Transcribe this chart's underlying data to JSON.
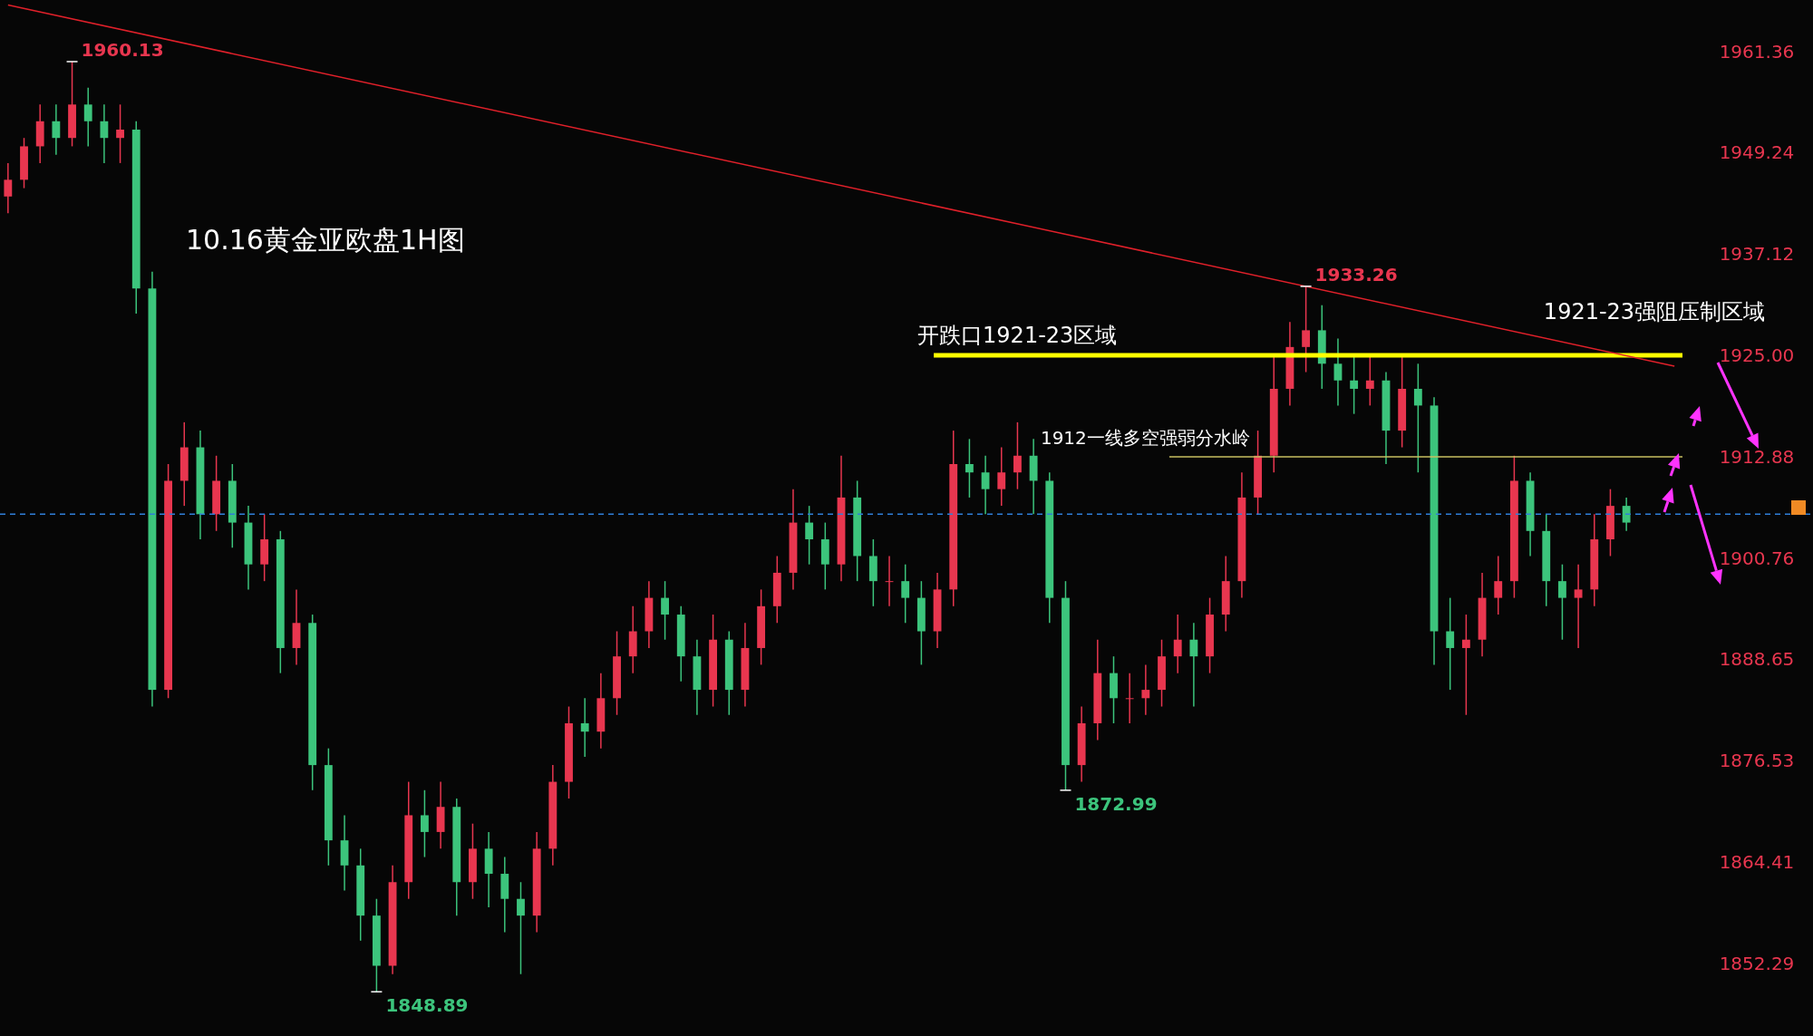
{
  "chart_data": {
    "type": "candlestick",
    "title": "10.16黄金亚欧盘1H图",
    "categories": [
      null,
      null,
      null,
      null,
      null,
      null,
      null,
      null,
      null,
      null,
      null,
      null,
      null,
      null,
      null,
      null,
      null,
      null,
      null,
      null,
      null,
      null,
      null,
      null,
      null,
      null,
      null,
      null,
      null,
      null,
      null,
      null,
      null,
      null,
      null,
      null,
      null,
      null,
      null,
      null,
      null,
      null,
      null,
      null,
      null,
      null,
      null,
      null,
      null,
      null,
      null,
      null,
      null,
      null,
      null,
      null,
      null,
      null,
      null,
      null,
      null,
      null,
      null,
      null,
      null,
      null,
      null,
      null,
      null,
      null,
      null,
      null,
      null,
      null,
      null,
      null,
      null,
      null,
      null,
      null,
      null,
      null,
      null,
      null,
      null,
      null,
      null,
      null,
      null,
      null,
      null,
      null,
      null,
      null,
      null,
      null,
      null,
      null,
      null,
      null,
      null,
      null,
      null,
      null,
      null
    ],
    "ohlc": [
      [
        1944,
        1948,
        1942,
        1946
      ],
      [
        1946,
        1951,
        1945,
        1950
      ],
      [
        1950,
        1955,
        1948,
        1953
      ],
      [
        1953,
        1955,
        1949,
        1951
      ],
      [
        1951,
        1960.13,
        1950,
        1955
      ],
      [
        1955,
        1957,
        1950,
        1953
      ],
      [
        1953,
        1955,
        1948,
        1951
      ],
      [
        1951,
        1955,
        1948,
        1952
      ],
      [
        1952,
        1953,
        1930,
        1933
      ],
      [
        1933,
        1935,
        1883,
        1885
      ],
      [
        1885,
        1912,
        1884,
        1910
      ],
      [
        1910,
        1917,
        1907,
        1914
      ],
      [
        1914,
        1916,
        1903,
        1906
      ],
      [
        1906,
        1913,
        1904,
        1910
      ],
      [
        1910,
        1912,
        1902,
        1905
      ],
      [
        1905,
        1907,
        1897,
        1900
      ],
      [
        1900,
        1906,
        1898,
        1903
      ],
      [
        1903,
        1904,
        1887,
        1890
      ],
      [
        1890,
        1897,
        1888,
        1893
      ],
      [
        1893,
        1894,
        1873,
        1876
      ],
      [
        1876,
        1878,
        1864,
        1867
      ],
      [
        1867,
        1870,
        1861,
        1864
      ],
      [
        1864,
        1866,
        1855,
        1858
      ],
      [
        1858,
        1860,
        1848.89,
        1852
      ],
      [
        1852,
        1864,
        1851,
        1862
      ],
      [
        1862,
        1874,
        1860,
        1870
      ],
      [
        1870,
        1873,
        1865,
        1868
      ],
      [
        1868,
        1874,
        1866,
        1871
      ],
      [
        1871,
        1872,
        1858,
        1862
      ],
      [
        1862,
        1869,
        1860,
        1866
      ],
      [
        1866,
        1868,
        1859,
        1863
      ],
      [
        1863,
        1865,
        1856,
        1860
      ],
      [
        1860,
        1862,
        1851,
        1858
      ],
      [
        1858,
        1868,
        1856,
        1866
      ],
      [
        1866,
        1876,
        1864,
        1874
      ],
      [
        1874,
        1883,
        1872,
        1881
      ],
      [
        1881,
        1884,
        1877,
        1880
      ],
      [
        1880,
        1887,
        1878,
        1884
      ],
      [
        1884,
        1892,
        1882,
        1889
      ],
      [
        1889,
        1895,
        1887,
        1892
      ],
      [
        1892,
        1898,
        1890,
        1896
      ],
      [
        1896,
        1898,
        1891,
        1894
      ],
      [
        1894,
        1895,
        1886,
        1889
      ],
      [
        1889,
        1891,
        1882,
        1885
      ],
      [
        1885,
        1894,
        1883,
        1891
      ],
      [
        1891,
        1892,
        1882,
        1885
      ],
      [
        1885,
        1893,
        1883,
        1890
      ],
      [
        1890,
        1897,
        1888,
        1895
      ],
      [
        1895,
        1901,
        1893,
        1899
      ],
      [
        1899,
        1909,
        1897,
        1905
      ],
      [
        1905,
        1907,
        1900,
        1903
      ],
      [
        1903,
        1905,
        1897,
        1900
      ],
      [
        1900,
        1913,
        1898,
        1908
      ],
      [
        1908,
        1910,
        1898,
        1901
      ],
      [
        1901,
        1903,
        1895,
        1898
      ],
      [
        1898,
        1901,
        1895,
        1898
      ],
      [
        1898,
        1900,
        1893,
        1896
      ],
      [
        1896,
        1898,
        1888,
        1892
      ],
      [
        1892,
        1899,
        1890,
        1897
      ],
      [
        1897,
        1916,
        1895,
        1912
      ],
      [
        1912,
        1915,
        1908,
        1911
      ],
      [
        1911,
        1913,
        1906,
        1909
      ],
      [
        1909,
        1914,
        1907,
        1911
      ],
      [
        1911,
        1917,
        1909,
        1913
      ],
      [
        1913,
        1915,
        1906,
        1910
      ],
      [
        1910,
        1911,
        1893,
        1896
      ],
      [
        1896,
        1898,
        1872.99,
        1876
      ],
      [
        1876,
        1883,
        1874,
        1881
      ],
      [
        1881,
        1891,
        1879,
        1887
      ],
      [
        1887,
        1889,
        1881,
        1884
      ],
      [
        1884,
        1887,
        1881,
        1884
      ],
      [
        1884,
        1888,
        1882,
        1885
      ],
      [
        1885,
        1891,
        1883,
        1889
      ],
      [
        1889,
        1894,
        1887,
        1891
      ],
      [
        1891,
        1893,
        1883,
        1889
      ],
      [
        1889,
        1896,
        1887,
        1894
      ],
      [
        1894,
        1901,
        1892,
        1898
      ],
      [
        1898,
        1911,
        1896,
        1908
      ],
      [
        1908,
        1916,
        1906,
        1913
      ],
      [
        1913,
        1925,
        1911,
        1921
      ],
      [
        1921,
        1929,
        1919,
        1926
      ],
      [
        1926,
        1933.26,
        1923,
        1928
      ],
      [
        1928,
        1931,
        1921,
        1924
      ],
      [
        1924,
        1927,
        1919,
        1922
      ],
      [
        1922,
        1925,
        1918,
        1921
      ],
      [
        1921,
        1925,
        1919,
        1922
      ],
      [
        1922,
        1923,
        1912,
        1916
      ],
      [
        1916,
        1925,
        1914,
        1921
      ],
      [
        1921,
        1924,
        1911,
        1919
      ],
      [
        1919,
        1920,
        1888,
        1892
      ],
      [
        1892,
        1896,
        1885,
        1890
      ],
      [
        1890,
        1894,
        1882,
        1891
      ],
      [
        1891,
        1899,
        1889,
        1896
      ],
      [
        1896,
        1901,
        1894,
        1898
      ],
      [
        1898,
        1913,
        1896,
        1910
      ],
      [
        1910,
        1911,
        1901,
        1904
      ],
      [
        1904,
        1906,
        1895,
        1898
      ],
      [
        1898,
        1900,
        1891,
        1896
      ],
      [
        1896,
        1900,
        1890,
        1897
      ],
      [
        1897,
        1906,
        1895,
        1903
      ],
      [
        1903,
        1909,
        1901,
        1907
      ],
      [
        1907,
        1908,
        1904,
        1905
      ],
      null,
      null,
      null
    ],
    "colors": [
      "#e8364f",
      "#e8364f",
      "#e8364f",
      "#3cc47c",
      "#e8364f",
      "#3cc47c",
      "#3cc47c",
      "#e8364f",
      "#3cc47c",
      "#3cc47c",
      "#e8364f",
      "#e8364f",
      "#3cc47c",
      "#e8364f",
      "#3cc47c",
      "#3cc47c",
      "#e8364f",
      "#3cc47c",
      "#e8364f",
      "#3cc47c",
      "#3cc47c",
      "#3cc47c",
      "#3cc47c",
      "#3cc47c",
      "#e8364f",
      "#e8364f",
      "#3cc47c",
      "#e8364f",
      "#3cc47c",
      "#e8364f",
      "#3cc47c",
      "#3cc47c",
      "#3cc47c",
      "#e8364f",
      "#e8364f",
      "#e8364f",
      "#3cc47c",
      "#e8364f",
      "#e8364f",
      "#e8364f",
      "#e8364f",
      "#3cc47c",
      "#3cc47c",
      "#3cc47c",
      "#e8364f",
      "#3cc47c",
      "#e8364f",
      "#e8364f",
      "#e8364f",
      "#e8364f",
      "#3cc47c",
      "#3cc47c",
      "#e8364f",
      "#3cc47c",
      "#3cc47c",
      "#e8364f",
      "#3cc47c",
      "#3cc47c",
      "#e8364f",
      "#e8364f",
      "#3cc47c",
      "#3cc47c",
      "#e8364f",
      "#e8364f",
      "#3cc47c",
      "#3cc47c",
      "#3cc47c",
      "#e8364f",
      "#e8364f",
      "#3cc47c",
      "#e8364f",
      "#e8364f",
      "#e8364f",
      "#e8364f",
      "#3cc47c",
      "#e8364f",
      "#e8364f",
      "#e8364f",
      "#e8364f",
      "#e8364f",
      "#e8364f",
      "#e8364f",
      "#3cc47c",
      "#3cc47c",
      "#3cc47c",
      "#e8364f",
      "#3cc47c",
      "#e8364f",
      "#3cc47c",
      "#3cc47c",
      "#3cc47c",
      "#e8364f",
      "#e8364f",
      "#e8364f",
      "#e8364f",
      "#3cc47c",
      "#3cc47c",
      "#3cc47c",
      "#e8364f",
      "#e8364f",
      "#e8364f",
      "#3cc47c",
      null,
      null,
      null
    ],
    "series": [
      {
        "type": "line",
        "color": "#e0202a",
        "values": [
          1966.9,
          null,
          null,
          null,
          null,
          null,
          null,
          null,
          null,
          null,
          null,
          null,
          null,
          null,
          null,
          null,
          null,
          null,
          null,
          null,
          null,
          null,
          null,
          null,
          null,
          null,
          null,
          null,
          null,
          null,
          null,
          null,
          null,
          null,
          null,
          null,
          null,
          null,
          null,
          null,
          null,
          null,
          null,
          null,
          null,
          null,
          null,
          null,
          null,
          null,
          null,
          null,
          null,
          null,
          null,
          null,
          null,
          null,
          null,
          null,
          null,
          null,
          null,
          null,
          null,
          null,
          null,
          null,
          null,
          null,
          null,
          null,
          null,
          null,
          null,
          null,
          null,
          null,
          null,
          null,
          null,
          null,
          null,
          null,
          null,
          null,
          null,
          null,
          null,
          null,
          null,
          null,
          null,
          null,
          null,
          null,
          null,
          null,
          null,
          null,
          null,
          null,
          null,
          null,
          1923.7
        ]
      }
    ],
    "ylim": [
      1843.6,
      1967.5
    ],
    "yticks": [
      1961.36,
      1949.24,
      1937.12,
      {
        "value": 1925,
        "label": "1925.00"
      },
      1912.88,
      1900.76,
      1888.65,
      1876.53,
      1864.41,
      1852.29
    ],
    "tick_labels": "y",
    "ref_lines": [
      {
        "axis": "y",
        "value": 1925,
        "label": "开跌口1921-23区域",
        "color": "#ffff00",
        "line_style": "solid"
      },
      {
        "axis": "y",
        "value": 1912.88,
        "label": "1912一线多空强弱分水岭",
        "color": "#c8c060",
        "line_style": "solid"
      },
      {
        "axis": "y",
        "value": 1906,
        "label": null,
        "color": "#2f7fd8",
        "line_style": "dashed"
      }
    ],
    "annotations": [
      "1960.13",
      "1933.26",
      "1872.99",
      "1848.89",
      "1921-23强阻压制区域"
    ]
  }
}
